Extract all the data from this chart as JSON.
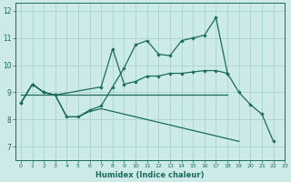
{
  "xlabel": "Humidex (Indice chaleur)",
  "ylabel": "",
  "background_color": "#cceae7",
  "grid_color": "#aad4cf",
  "line_color": "#1a6b5e",
  "xlim": [
    -0.5,
    23
  ],
  "ylim": [
    6.5,
    12.3
  ],
  "xticks": [
    0,
    1,
    2,
    3,
    4,
    5,
    6,
    7,
    8,
    9,
    10,
    11,
    12,
    13,
    14,
    15,
    16,
    17,
    18,
    19,
    20,
    21,
    22,
    23
  ],
  "yticks": [
    7,
    8,
    9,
    10,
    11,
    12
  ],
  "line1_y": [
    8.6,
    9.3,
    9.0,
    8.9,
    8.1,
    8.1,
    8.35,
    8.5,
    9.2,
    9.9,
    10.75,
    10.9,
    10.4,
    10.35,
    10.9,
    11.0,
    11.1,
    11.75,
    9.7,
    9.0,
    8.55,
    8.2,
    7.2,
    null
  ],
  "line2_y": [
    8.6,
    9.3,
    9.0,
    8.9,
    null,
    null,
    null,
    9.2,
    10.6,
    9.3,
    9.4,
    9.6,
    9.6,
    9.7,
    9.7,
    9.75,
    9.8,
    9.8,
    9.7,
    null,
    null,
    null,
    null,
    null
  ],
  "line3_y": [
    8.9,
    8.9,
    8.9,
    8.9,
    8.9,
    8.9,
    8.9,
    8.9,
    8.9,
    8.9,
    8.9,
    8.9,
    8.9,
    8.9,
    8.9,
    8.9,
    8.9,
    8.9,
    8.9,
    null,
    null,
    null,
    null,
    null
  ],
  "line4_y": [
    8.6,
    9.3,
    9.0,
    8.9,
    8.1,
    8.1,
    8.3,
    8.4,
    8.3,
    8.2,
    8.1,
    8.0,
    7.9,
    7.8,
    7.7,
    7.6,
    7.5,
    7.4,
    7.3,
    7.2,
    null,
    null,
    null,
    null
  ]
}
